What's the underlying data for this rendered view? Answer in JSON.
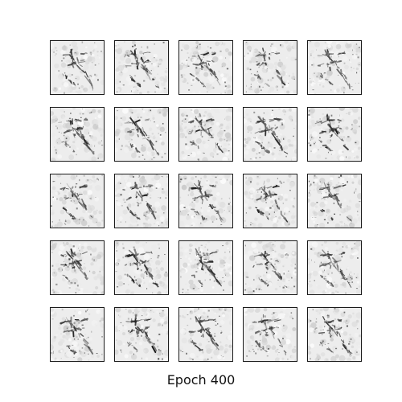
{
  "figure": {
    "caption": "Epoch 400",
    "grid": {
      "rows": 5,
      "cols": 5
    },
    "colormap": "gray",
    "background_color": "#ffffff",
    "frame_color": "#1a1a1a"
  }
}
